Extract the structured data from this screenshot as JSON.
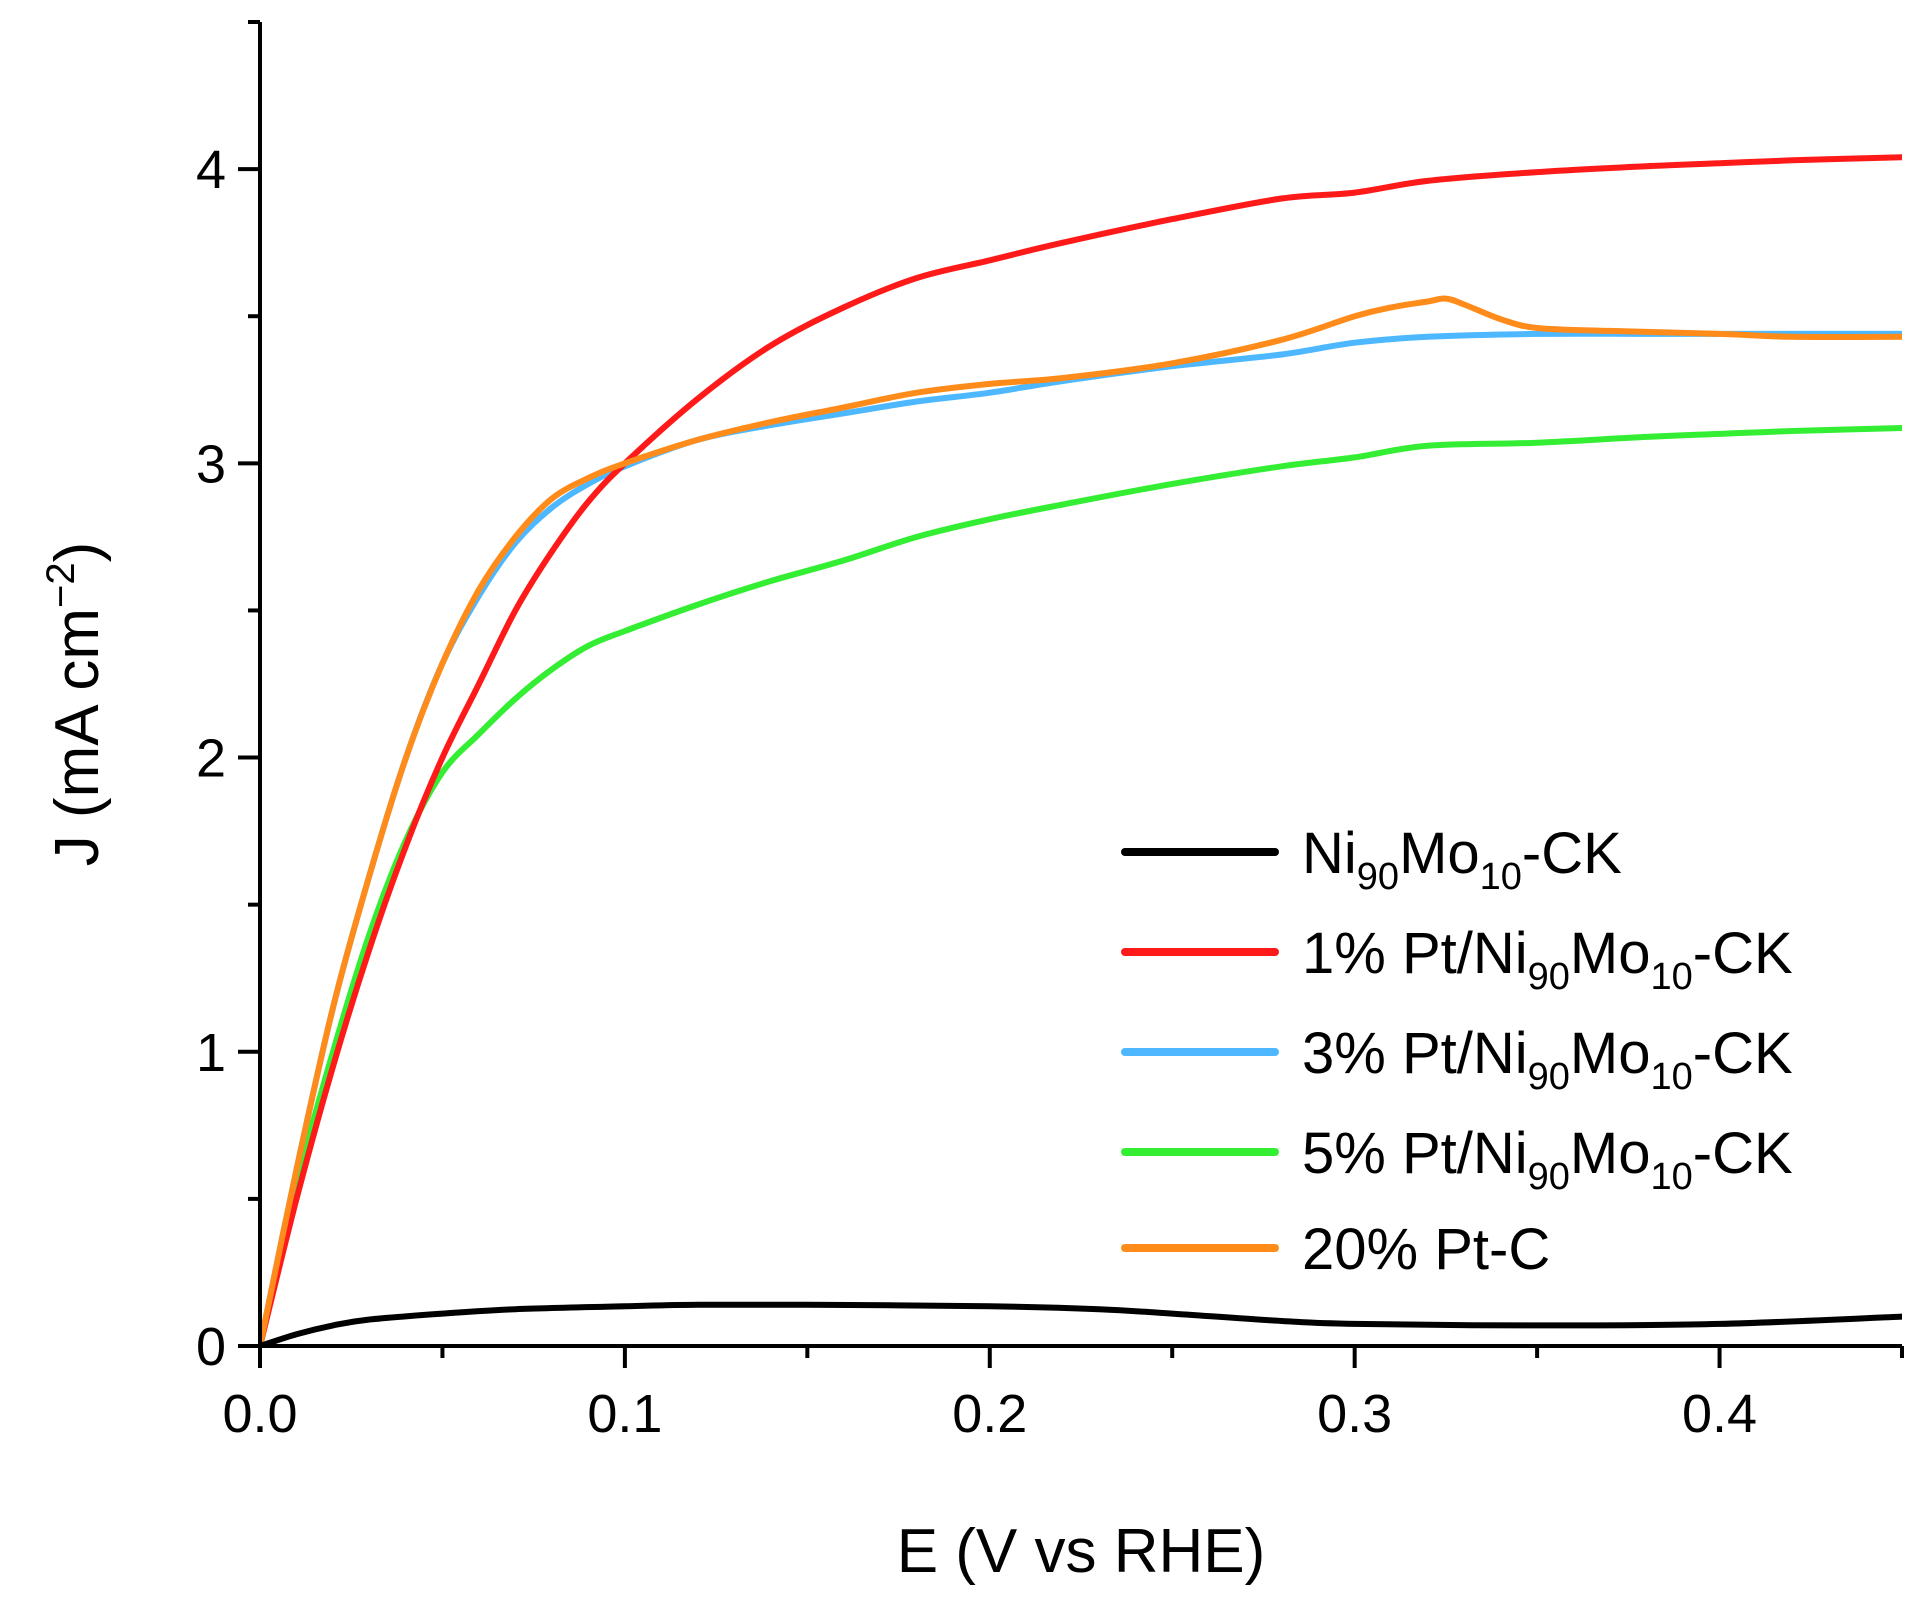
{
  "chart_data": {
    "type": "line",
    "title": "",
    "xlabel": "E (V vs RHE)",
    "ylabel": {
      "main": "J (mA cm",
      "sup": "−2",
      "close": ")"
    },
    "xlim": [
      0,
      0.45
    ],
    "ylim": [
      0,
      4.5
    ],
    "x_major_ticks": [
      0.0,
      0.1,
      0.2,
      0.3,
      0.4
    ],
    "x_tick_labels": [
      "0.0",
      "0.1",
      "0.2",
      "0.3",
      "0.4"
    ],
    "y_major_ticks": [
      0,
      1,
      2,
      3,
      4
    ],
    "y_tick_labels": [
      "0",
      "1",
      "2",
      "3",
      "4"
    ],
    "legend_position": "lower-right",
    "grid": false,
    "series": [
      {
        "name": "Ni90Mo10-CK",
        "label": {
          "pre": "Ni",
          "sub1": "90",
          "mid": "Mo",
          "sub2": "10",
          "post": "-CK"
        },
        "color": "#000000",
        "x": [
          0,
          0.01,
          0.02,
          0.03,
          0.05,
          0.07,
          0.1,
          0.12,
          0.15,
          0.2,
          0.23,
          0.25,
          0.28,
          0.3,
          0.35,
          0.4,
          0.45
        ],
        "y": [
          0,
          0.04,
          0.07,
          0.09,
          0.11,
          0.125,
          0.135,
          0.14,
          0.14,
          0.135,
          0.125,
          0.11,
          0.085,
          0.075,
          0.07,
          0.075,
          0.1
        ]
      },
      {
        "name": "1% Pt/Ni90Mo10-CK",
        "label": {
          "pre": "1% Pt/Ni",
          "sub1": "90",
          "mid": "Mo",
          "sub2": "10",
          "post": "-CK"
        },
        "color": "#ff1a1a",
        "x": [
          0,
          0.01,
          0.02,
          0.03,
          0.04,
          0.05,
          0.06,
          0.07,
          0.08,
          0.09,
          0.1,
          0.12,
          0.14,
          0.16,
          0.18,
          0.2,
          0.22,
          0.25,
          0.28,
          0.3,
          0.32,
          0.35,
          0.38,
          0.4,
          0.42,
          0.45
        ],
        "y": [
          0,
          0.5,
          0.95,
          1.35,
          1.7,
          2.0,
          2.25,
          2.5,
          2.7,
          2.87,
          3.0,
          3.22,
          3.4,
          3.53,
          3.63,
          3.69,
          3.75,
          3.83,
          3.9,
          3.92,
          3.96,
          3.99,
          4.01,
          4.02,
          4.03,
          4.04
        ]
      },
      {
        "name": "3% Pt/Ni90Mo10-CK",
        "label": {
          "pre": "3% Pt/Ni",
          "sub1": "90",
          "mid": "Mo",
          "sub2": "10",
          "post": "-CK"
        },
        "color": "#4db8ff",
        "x": [
          0,
          0.01,
          0.02,
          0.03,
          0.04,
          0.05,
          0.06,
          0.07,
          0.08,
          0.09,
          0.1,
          0.12,
          0.14,
          0.16,
          0.18,
          0.2,
          0.22,
          0.25,
          0.28,
          0.3,
          0.32,
          0.35,
          0.38,
          0.4,
          0.42,
          0.45
        ],
        "y": [
          0,
          0.6,
          1.15,
          1.6,
          2.0,
          2.32,
          2.55,
          2.73,
          2.85,
          2.93,
          2.99,
          3.08,
          3.13,
          3.17,
          3.21,
          3.24,
          3.28,
          3.33,
          3.37,
          3.41,
          3.43,
          3.44,
          3.44,
          3.44,
          3.44,
          3.44
        ]
      },
      {
        "name": "5% Pt/Ni90Mo10-CK",
        "label": {
          "pre": "5% Pt/Ni",
          "sub1": "90",
          "mid": "Mo",
          "sub2": "10",
          "post": "-CK"
        },
        "color": "#33ee33",
        "x": [
          0,
          0.01,
          0.02,
          0.03,
          0.04,
          0.05,
          0.06,
          0.07,
          0.08,
          0.09,
          0.1,
          0.12,
          0.14,
          0.16,
          0.18,
          0.2,
          0.22,
          0.25,
          0.28,
          0.3,
          0.32,
          0.35,
          0.38,
          0.4,
          0.42,
          0.45
        ],
        "y": [
          0,
          0.55,
          1.0,
          1.4,
          1.72,
          1.95,
          2.08,
          2.2,
          2.3,
          2.38,
          2.43,
          2.52,
          2.6,
          2.67,
          2.75,
          2.81,
          2.86,
          2.93,
          2.99,
          3.02,
          3.06,
          3.07,
          3.09,
          3.1,
          3.11,
          3.12
        ]
      },
      {
        "name": "20% Pt-C",
        "label": {
          "pre": "20% Pt-C",
          "sub1": "",
          "mid": "",
          "sub2": "",
          "post": ""
        },
        "color": "#ff8c1a",
        "x": [
          0,
          0.01,
          0.02,
          0.03,
          0.04,
          0.05,
          0.06,
          0.07,
          0.08,
          0.09,
          0.1,
          0.12,
          0.14,
          0.16,
          0.18,
          0.2,
          0.22,
          0.25,
          0.28,
          0.3,
          0.31,
          0.32,
          0.325,
          0.33,
          0.34,
          0.35,
          0.37,
          0.4,
          0.42,
          0.45
        ],
        "y": [
          0,
          0.6,
          1.15,
          1.6,
          2.0,
          2.32,
          2.57,
          2.75,
          2.88,
          2.95,
          3.0,
          3.08,
          3.14,
          3.19,
          3.24,
          3.27,
          3.29,
          3.34,
          3.42,
          3.5,
          3.53,
          3.55,
          3.56,
          3.54,
          3.49,
          3.46,
          3.45,
          3.44,
          3.43,
          3.43
        ]
      }
    ]
  }
}
